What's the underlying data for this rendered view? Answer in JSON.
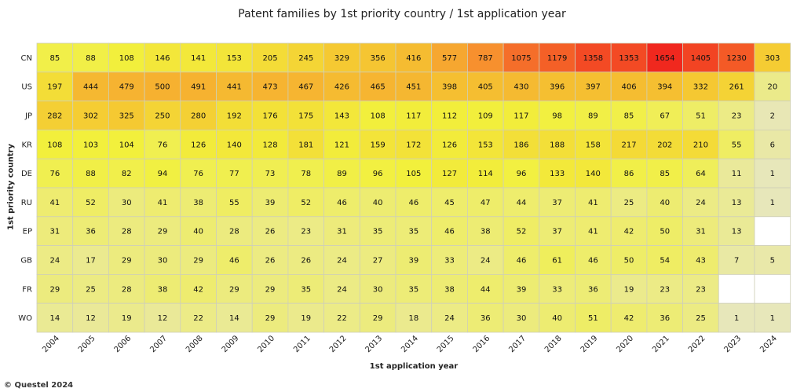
{
  "chart_data": {
    "type": "heatmap",
    "title": "Patent families by 1st priority country / 1st application year",
    "xlabel": "1st application year",
    "ylabel": "1st priority country",
    "categories": [
      "2004",
      "2005",
      "2006",
      "2007",
      "2008",
      "2009",
      "2010",
      "2011",
      "2012",
      "2013",
      "2014",
      "2015",
      "2016",
      "2017",
      "2018",
      "2019",
      "2020",
      "2021",
      "2022",
      "2023",
      "2024"
    ],
    "rows": [
      "CN",
      "US",
      "JP",
      "KR",
      "DE",
      "RU",
      "EP",
      "GB",
      "FR",
      "WO"
    ],
    "values": [
      [
        85,
        88,
        108,
        146,
        141,
        153,
        205,
        245,
        329,
        356,
        416,
        577,
        787,
        1075,
        1179,
        1358,
        1353,
        1654,
        1405,
        1230,
        303
      ],
      [
        197,
        444,
        479,
        500,
        491,
        441,
        473,
        467,
        426,
        465,
        451,
        398,
        405,
        430,
        396,
        397,
        406,
        394,
        332,
        261,
        20
      ],
      [
        282,
        302,
        325,
        250,
        280,
        192,
        176,
        175,
        143,
        108,
        117,
        112,
        109,
        117,
        98,
        89,
        85,
        67,
        51,
        23,
        2
      ],
      [
        108,
        103,
        104,
        76,
        126,
        140,
        128,
        181,
        121,
        159,
        172,
        126,
        153,
        186,
        188,
        158,
        217,
        202,
        210,
        55,
        6
      ],
      [
        76,
        88,
        82,
        94,
        76,
        77,
        73,
        78,
        89,
        96,
        105,
        127,
        114,
        96,
        133,
        140,
        86,
        85,
        64,
        11,
        1
      ],
      [
        41,
        52,
        30,
        41,
        38,
        55,
        39,
        52,
        46,
        40,
        46,
        45,
        47,
        44,
        37,
        41,
        25,
        40,
        24,
        13,
        1
      ],
      [
        31,
        36,
        28,
        29,
        40,
        28,
        26,
        23,
        31,
        35,
        35,
        46,
        38,
        52,
        37,
        41,
        42,
        50,
        31,
        13,
        null
      ],
      [
        24,
        17,
        29,
        30,
        29,
        46,
        26,
        26,
        24,
        27,
        39,
        33,
        24,
        46,
        61,
        46,
        50,
        54,
        43,
        7,
        5
      ],
      [
        29,
        25,
        28,
        38,
        42,
        29,
        29,
        35,
        24,
        30,
        35,
        38,
        44,
        39,
        33,
        36,
        19,
        23,
        23,
        null,
        null
      ],
      [
        14,
        12,
        19,
        12,
        22,
        14,
        29,
        19,
        22,
        29,
        18,
        24,
        36,
        30,
        40,
        51,
        42,
        36,
        25,
        1,
        1
      ]
    ],
    "color_scale": {
      "low": "#e6e6c8",
      "mid_low": "#f2f03c",
      "mid": "#f5c832",
      "high": "#f7822d",
      "max": "#f0281e"
    }
  },
  "footer": {
    "copyright": "© Questel 2024"
  }
}
